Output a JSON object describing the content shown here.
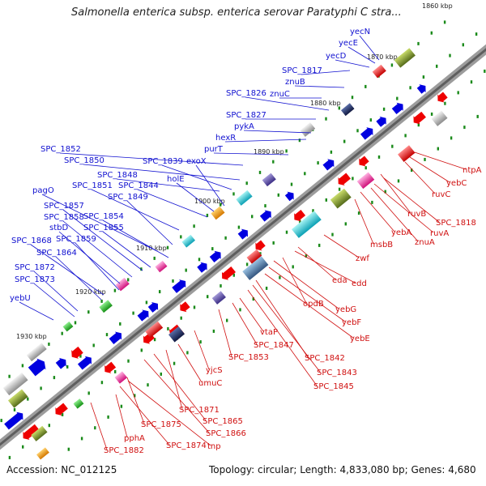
{
  "title": "Salmonella enterica subsp. enterica serovar Paratyphi C stra...",
  "footer": {
    "accession": "Accession: NC_012125",
    "summary": "Topology: circular; Length: 4,833,080 bp; Genes: 4,680"
  },
  "colors": {
    "backbone": "#7a7a7a",
    "forward_label": "#1010d0",
    "reverse_label": "#d01010",
    "forward_arrow": "#0000e0",
    "reverse_arrow": "#ee0000",
    "tick": "#1a8a1a"
  },
  "ticks": [
    "1860 kbp",
    "1870 kbp",
    "1880 kbp",
    "1890 kbp",
    "1900 kbp",
    "1910 kbp",
    "1920 kbp",
    "1930 kbp"
  ],
  "forward_labels": [
    "yecN",
    "yecE",
    "yecD",
    "SPC_1817",
    "znuB",
    "SPC_1826",
    "znuC",
    "SPC_1827",
    "pykA",
    "hexR",
    "SPC_1852",
    "purT",
    "SPC_1850",
    "SPC_1839",
    "exoX",
    "SPC_1848",
    "holE",
    "SPC_1844",
    "SPC_1851",
    "pagO",
    "SPC_1849",
    "SPC_1857",
    "SPC_1858",
    "SPC_1854",
    "stbD",
    "SPC_1855",
    "SPC_1859",
    "SPC_1868",
    "SPC_1864",
    "SPC_1872",
    "SPC_1873",
    "yebU"
  ],
  "reverse_labels": [
    "ntpA",
    "yebC",
    "ruvC",
    "ruvB",
    "SPC_1818",
    "ruvA",
    "znuA",
    "yebA",
    "msbB",
    "zwf",
    "eda",
    "edd",
    "opdB",
    "yebG",
    "yebF",
    "yebE",
    "SPC_1842",
    "SPC_1843",
    "SPC_1845",
    "vtaP",
    "SPC_1847",
    "SPC_1853",
    "yjcS",
    "umuC",
    "SPC_1871",
    "SPC_1865",
    "SPC_1866",
    "SPC_1875",
    "tnp",
    "SPC_1874",
    "pphA",
    "SPC_1882"
  ]
}
